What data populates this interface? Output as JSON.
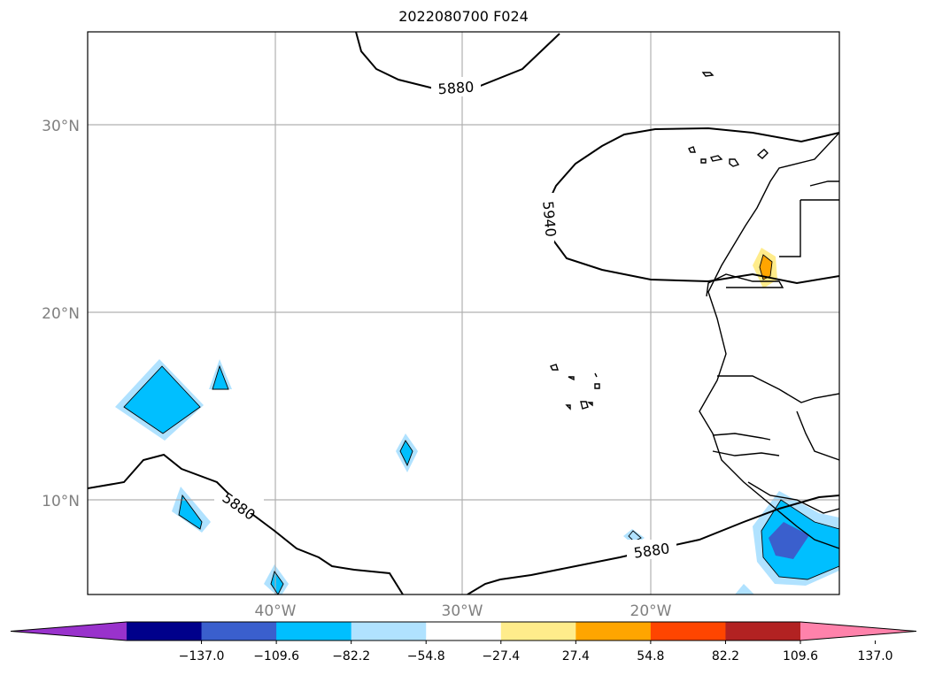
{
  "title": "2022080700 F024",
  "map": {
    "lat_labels": [
      "30°N",
      "20°N",
      "10°N"
    ],
    "lon_labels": [
      "40°W",
      "30°W",
      "20°W"
    ],
    "contour_labels": [
      "5880",
      "5940",
      "5880",
      "5880"
    ]
  },
  "colorbar": {
    "ticks": [
      "−137.0",
      "−109.6",
      "−82.2",
      "−54.8",
      "−27.4",
      "27.4",
      "54.8",
      "82.2",
      "109.6",
      "137.0"
    ],
    "colors": [
      "#9932cc",
      "#00008b",
      "#3a5fcd",
      "#00bfff",
      "#b0e2ff",
      "#ffffff",
      "#ffec8b",
      "#ffa500",
      "#ff4500",
      "#b22222",
      "#ff82ab"
    ]
  }
}
